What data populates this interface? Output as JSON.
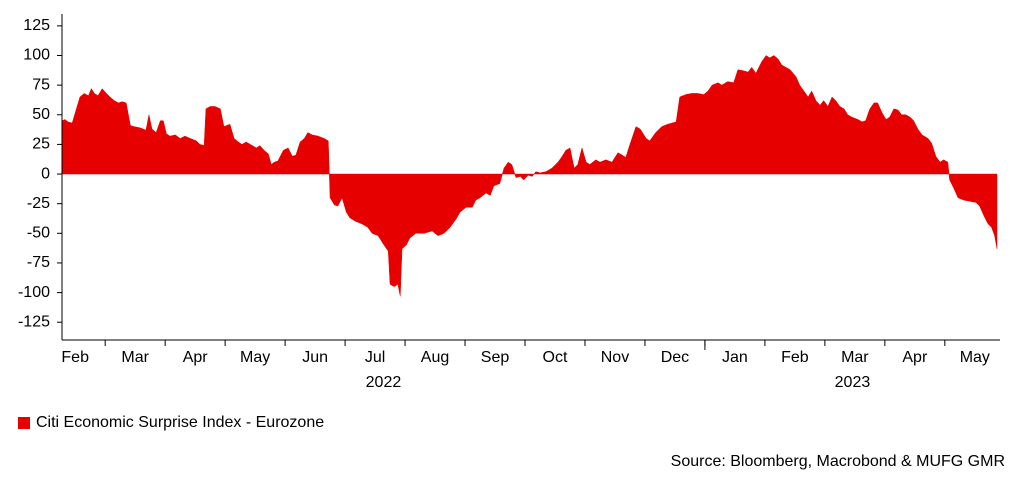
{
  "chart_data": {
    "type": "area",
    "series": [
      {
        "name": "Citi Economic Surprise Index - Eurozone",
        "color": "#e60000",
        "x": [
          0.28,
          0.33,
          0.38,
          0.45,
          0.52,
          0.58,
          0.65,
          0.72,
          0.77,
          0.82,
          0.88,
          0.95,
          1.02,
          1.08,
          1.15,
          1.22,
          1.28,
          1.35,
          1.42,
          1.48,
          1.58,
          1.68,
          1.73,
          1.78,
          1.85,
          1.92,
          1.97,
          2.02,
          2.08,
          2.17,
          2.25,
          2.33,
          2.42,
          2.52,
          2.58,
          2.65,
          2.68,
          2.75,
          2.83,
          2.92,
          2.98,
          3.08,
          3.15,
          3.22,
          3.28,
          3.35,
          3.42,
          3.52,
          3.58,
          3.65,
          3.72,
          3.77,
          3.82,
          3.88,
          3.97,
          4.05,
          4.12,
          4.18,
          4.25,
          4.32,
          4.38,
          4.45,
          4.55,
          4.65,
          4.72,
          4.75,
          4.82,
          4.88,
          4.95,
          5.02,
          5.08,
          5.18,
          5.28,
          5.38,
          5.45,
          5.55,
          5.65,
          5.72,
          5.75,
          5.82,
          5.88,
          5.92,
          5.95,
          6.02,
          6.08,
          6.18,
          6.32,
          6.45,
          6.55,
          6.65,
          6.75,
          6.85,
          6.92,
          7.02,
          7.12,
          7.18,
          7.25,
          7.35,
          7.42,
          7.48,
          7.58,
          7.65,
          7.72,
          7.78,
          7.85,
          7.92,
          7.98,
          8.05,
          8.12,
          8.18,
          8.25,
          8.35,
          8.45,
          8.55,
          8.62,
          8.68,
          8.75,
          8.82,
          8.88,
          8.95,
          9.02,
          9.08,
          9.18,
          9.25,
          9.35,
          9.45,
          9.55,
          9.62,
          9.68,
          9.75,
          9.85,
          9.92,
          10.02,
          10.08,
          10.18,
          10.28,
          10.38,
          10.52,
          10.58,
          10.68,
          10.78,
          10.88,
          10.98,
          11.05,
          11.12,
          11.22,
          11.28,
          11.38,
          11.48,
          11.55,
          11.65,
          11.72,
          11.78,
          11.85,
          11.95,
          12.02,
          12.08,
          12.15,
          12.22,
          12.28,
          12.35,
          12.42,
          12.52,
          12.58,
          12.65,
          12.72,
          12.78,
          12.85,
          12.92,
          12.98,
          13.05,
          13.12,
          13.18,
          13.25,
          13.32,
          13.38,
          13.45,
          13.55,
          13.62,
          13.68,
          13.75,
          13.82,
          13.88,
          13.95,
          14.02,
          14.08,
          14.15,
          14.22,
          14.28,
          14.35,
          14.42,
          14.48,
          14.55,
          14.62,
          14.72,
          14.78,
          14.85,
          14.92,
          14.98,
          15.05,
          15.08,
          15.15,
          15.22,
          15.32,
          15.42,
          15.52,
          15.58,
          15.65,
          15.72,
          15.78,
          15.83,
          15.87
        ],
        "values": [
          45,
          46,
          44,
          43,
          55,
          65,
          68,
          66,
          72,
          68,
          66,
          72,
          68,
          65,
          62,
          60,
          61,
          60,
          41,
          40,
          39,
          37,
          50,
          38,
          35,
          45,
          45,
          34,
          32,
          33,
          30,
          32,
          30,
          28,
          25,
          24,
          55,
          57,
          57,
          55,
          40,
          42,
          30,
          27,
          25,
          27,
          25,
          22,
          24,
          20,
          17,
          8,
          10,
          11,
          20,
          22,
          15,
          16,
          27,
          30,
          35,
          33,
          32,
          30,
          28,
          -20,
          -26,
          -27,
          -20,
          -32,
          -37,
          -40,
          -42,
          -45,
          -50,
          -52,
          -60,
          -65,
          -93,
          -95,
          -93,
          -103,
          -63,
          -60,
          -54,
          -50,
          -50,
          -48,
          -52,
          -50,
          -45,
          -38,
          -32,
          -28,
          -28,
          -22,
          -20,
          -16,
          -18,
          -10,
          -8,
          5,
          10,
          8,
          -3,
          -2,
          -5,
          -1,
          -2,
          2,
          1,
          2,
          5,
          10,
          15,
          20,
          22,
          5,
          8,
          22,
          10,
          8,
          12,
          10,
          12,
          10,
          18,
          16,
          14,
          25,
          40,
          38,
          30,
          28,
          35,
          40,
          42,
          44,
          65,
          67,
          68,
          68,
          67,
          70,
          75,
          77,
          75,
          78,
          77,
          88,
          87,
          86,
          90,
          85,
          95,
          100,
          98,
          100,
          97,
          92,
          90,
          88,
          82,
          75,
          70,
          65,
          70,
          62,
          58,
          62,
          57,
          65,
          62,
          57,
          55,
          50,
          48,
          46,
          44,
          45,
          55,
          60,
          60,
          52,
          46,
          48,
          55,
          54,
          50,
          50,
          48,
          45,
          38,
          33,
          30,
          26,
          15,
          10,
          12,
          10,
          -5,
          -12,
          -20,
          -22,
          -23,
          -24,
          -27,
          -35,
          -42,
          -45,
          -52,
          -63
        ]
      }
    ],
    "xlim": [
      0.28,
      15.92
    ],
    "xticks": [
      {
        "value": 0.5,
        "label": "Feb"
      },
      {
        "value": 1.5,
        "label": "Mar"
      },
      {
        "value": 2.5,
        "label": "Apr"
      },
      {
        "value": 3.5,
        "label": "May"
      },
      {
        "value": 4.5,
        "label": "Jun"
      },
      {
        "value": 5.5,
        "label": "Jul"
      },
      {
        "value": 6.5,
        "label": "Aug"
      },
      {
        "value": 7.5,
        "label": "Sep"
      },
      {
        "value": 8.5,
        "label": "Oct"
      },
      {
        "value": 9.5,
        "label": "Nov"
      },
      {
        "value": 10.5,
        "label": "Dec"
      },
      {
        "value": 11.5,
        "label": "Jan"
      },
      {
        "value": 12.5,
        "label": "Feb"
      },
      {
        "value": 13.5,
        "label": "Mar"
      },
      {
        "value": 14.5,
        "label": "Apr"
      },
      {
        "value": 15.5,
        "label": "May"
      }
    ],
    "x_groups": [
      {
        "label": "2022",
        "start": 0,
        "end": 11
      },
      {
        "label": "2023",
        "start": 11,
        "end": 16
      }
    ],
    "ylim": [
      -140,
      135
    ],
    "yticks": [
      125,
      100,
      75,
      50,
      25,
      0,
      -25,
      -50,
      -75,
      -100,
      -125
    ],
    "legend": "bottom-left",
    "source": "Source: Bloomberg, Macrobond & MUFG GMR"
  }
}
